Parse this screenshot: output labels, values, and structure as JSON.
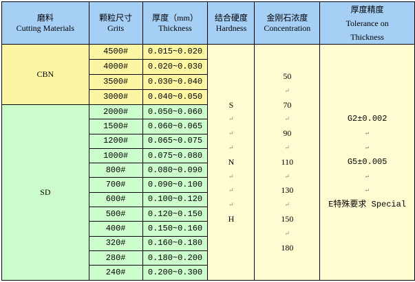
{
  "paragraph_mark": "↵",
  "header": {
    "material": {
      "zh": "磨料",
      "en": "Cutting Materials"
    },
    "grits": {
      "zh": "颗粒尺寸",
      "en": "Grits"
    },
    "thickness": {
      "zh": "厚度（mm）",
      "en": "Thickness"
    },
    "hardness": {
      "zh": "结合硬度",
      "en": "Hardness"
    },
    "concentration": {
      "zh": "金刚石浓度",
      "en": "Concentration"
    },
    "tolerance": {
      "zh": "厚度精度",
      "en1": "Tolerance on",
      "en2": "Thickness"
    }
  },
  "groups": [
    {
      "material": "CBN",
      "rows": [
        {
          "grit": "4500#",
          "thickness": "0.015~0.020"
        },
        {
          "grit": "4000#",
          "thickness": "0.020~0.030"
        },
        {
          "grit": "3500#",
          "thickness": "0.030~0.040"
        },
        {
          "grit": "3000#",
          "thickness": "0.040~0.050"
        }
      ]
    },
    {
      "material": "SD",
      "rows": [
        {
          "grit": "2000#",
          "thickness": "0.050~0.060"
        },
        {
          "grit": "1500#",
          "thickness": "0.060~0.065"
        },
        {
          "grit": "1200#",
          "thickness": "0.065~0.075"
        },
        {
          "grit": "1000#",
          "thickness": "0.075~0.080"
        },
        {
          "grit": "800#",
          "thickness": "0.080~0.090"
        },
        {
          "grit": "700#",
          "thickness": "0.090~0.100"
        },
        {
          "grit": "600#",
          "thickness": "0.100~0.120"
        },
        {
          "grit": "500#",
          "thickness": "0.120~0.150"
        },
        {
          "grit": "400#",
          "thickness": "0.150~0.160"
        },
        {
          "grit": "320#",
          "thickness": "0.160~0.180"
        },
        {
          "grit": "280#",
          "thickness": "0.180~0.200"
        },
        {
          "grit": "240#",
          "thickness": "0.200~0.300"
        }
      ]
    }
  ],
  "hardness_lines": [
    "S",
    "",
    "",
    "",
    "N",
    "",
    "",
    "",
    "H"
  ],
  "concentration_lines": [
    "50",
    "",
    "70",
    "",
    "90",
    "",
    "110",
    "",
    "130",
    "",
    "150",
    "",
    "180"
  ],
  "tolerance_lines": [
    "G2±0.002",
    "",
    "",
    "G5±0.005",
    "",
    "",
    "E特殊要求 Special"
  ],
  "colors": {
    "header": "#a6cff5",
    "cbn": "#fcf5a2",
    "sd": "#ccfccc",
    "light_yellow": "#fffcd2"
  }
}
